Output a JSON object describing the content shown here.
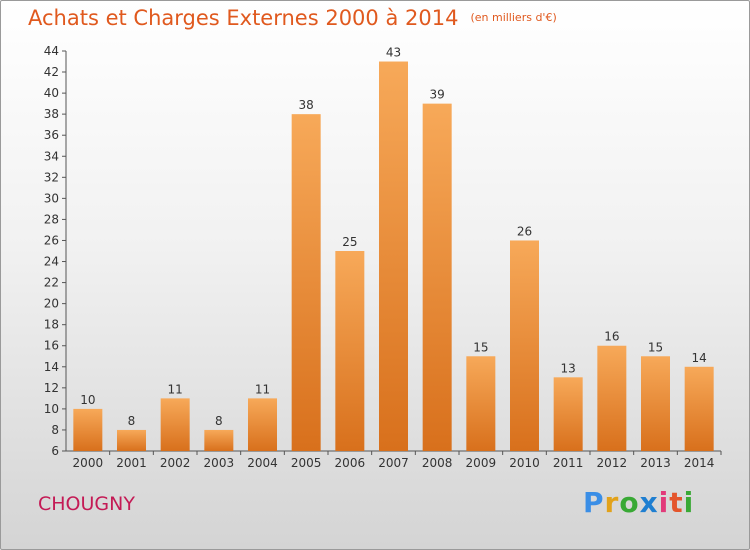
{
  "title": "Achats et Charges Externes 2000 à 2014",
  "unit": "(en milliers d'€)",
  "commune": "CHOUGNY",
  "logo": {
    "letters": [
      "P",
      "r",
      "o",
      "x",
      "i",
      "t",
      "i"
    ],
    "colors": [
      "#3a8ee6",
      "#e2a21a",
      "#39a935",
      "#1f7fd1",
      "#e23a7a",
      "#e4552c",
      "#39a935"
    ]
  },
  "colors": {
    "title": "#e0591e",
    "commune": "#c41a55",
    "bar_light": "#f7a959",
    "bar_dark": "#d8701c",
    "background_top": "#ffffff",
    "background_bottom": "#d4d4d4"
  },
  "chart_data": {
    "type": "bar",
    "title": "Achats et Charges Externes 2000 à 2014",
    "subtitle": "(en milliers d'€)",
    "categories": [
      "2000",
      "2001",
      "2002",
      "2003",
      "2004",
      "2005",
      "2006",
      "2007",
      "2008",
      "2009",
      "2010",
      "2011",
      "2012",
      "2013",
      "2014"
    ],
    "values": [
      10,
      8,
      11,
      8,
      11,
      38,
      25,
      43,
      39,
      15,
      26,
      13,
      16,
      15,
      14
    ],
    "ylim": [
      6,
      44
    ],
    "yticks": [
      6,
      8,
      10,
      12,
      14,
      16,
      18,
      20,
      22,
      24,
      26,
      28,
      30,
      32,
      34,
      36,
      38,
      40,
      42,
      44
    ],
    "xlabel": "",
    "ylabel": "",
    "grid": false,
    "legend": "none",
    "data_labels": true
  }
}
